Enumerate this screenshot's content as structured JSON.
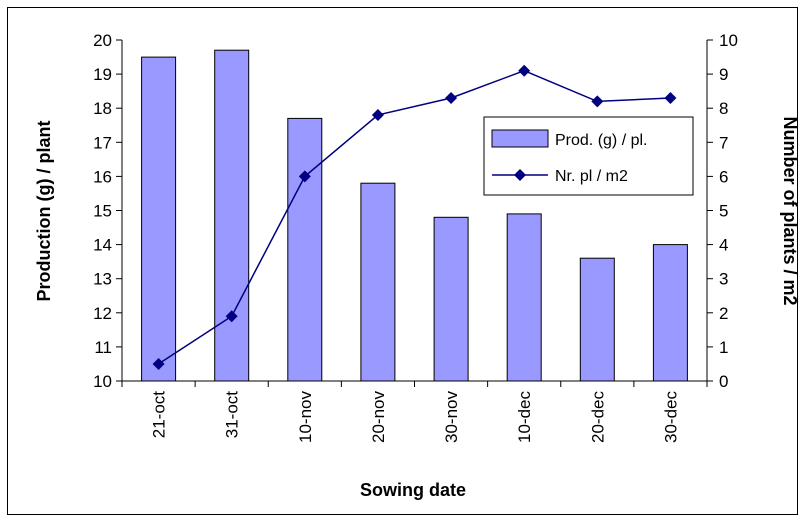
{
  "chart_data": {
    "type": "bar",
    "categories": [
      "21-oct",
      "31-oct",
      "10-nov",
      "20-nov",
      "30-nov",
      "10-dec",
      "20-dec",
      "30-dec"
    ],
    "series": [
      {
        "name": "Prod. (g) / pl.",
        "kind": "bar",
        "axis": "left",
        "color": "#9999ff",
        "values": [
          19.5,
          19.7,
          17.7,
          15.8,
          14.8,
          14.9,
          13.6,
          14.0
        ]
      },
      {
        "name": "Nr. pl / m2",
        "kind": "line",
        "axis": "right",
        "color": "#000080",
        "marker": "diamond",
        "values": [
          0.5,
          1.9,
          6.0,
          7.8,
          8.3,
          9.1,
          8.2,
          8.3
        ]
      }
    ],
    "xlabel": "Sowing date",
    "ylabel": "Production (g) / plant",
    "y2label": "Number of plants / m2",
    "ylim": [
      10,
      20
    ],
    "y2lim": [
      0,
      10
    ],
    "yticks": [
      "10",
      "11",
      "12",
      "13",
      "14",
      "15",
      "16",
      "17",
      "18",
      "19",
      "20"
    ],
    "y2ticks": [
      "0",
      "1",
      "2",
      "3",
      "4",
      "5",
      "6",
      "7",
      "8",
      "9",
      "10"
    ],
    "grid": false,
    "legend": "inside top-right"
  }
}
